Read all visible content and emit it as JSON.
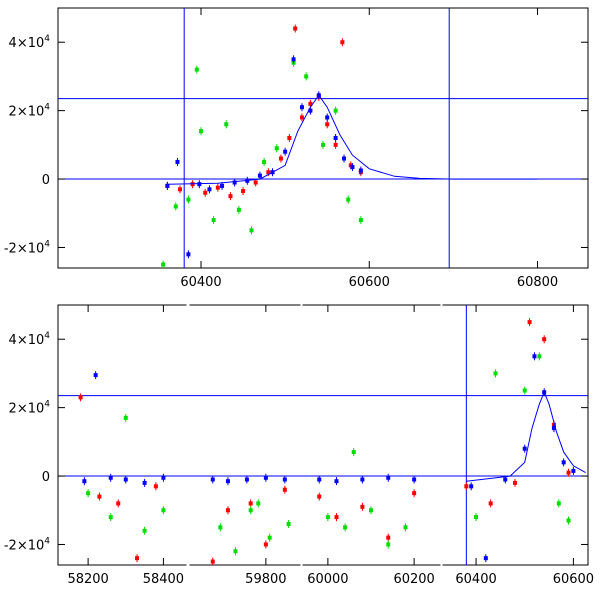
{
  "chart_data": [
    {
      "type": "scatter",
      "panel": "top",
      "xlim": [
        60230,
        60860
      ],
      "ylim": [
        -26000,
        50000
      ],
      "xticks": [
        60400,
        60600,
        60800
      ],
      "xtick_labels": [
        "60400",
        "60600",
        "60800"
      ],
      "yticks": [
        -20000,
        0,
        20000,
        40000
      ],
      "ytick_labels": [
        {
          "base": "-2×10",
          "exp": "4"
        },
        {
          "base": "0",
          "exp": ""
        },
        {
          "base": "2×10",
          "exp": "4"
        },
        {
          "base": "4×10",
          "exp": "4"
        }
      ],
      "reference_lines": {
        "vertical_x": [
          60380,
          60695
        ],
        "horizontal_y": [
          0,
          23500
        ]
      },
      "series": [
        {
          "color": "#ff0000",
          "x": [
            60360,
            60375,
            60390,
            60405,
            60420,
            60435,
            60450,
            60465,
            60480,
            60495,
            60505,
            60512,
            60520,
            60530,
            60540,
            60550,
            60560,
            60568,
            60578,
            60590
          ],
          "y": [
            -2000,
            -3000,
            -1500,
            -4000,
            -2500,
            -5000,
            -3500,
            -1000,
            2000,
            6000,
            12000,
            44000,
            18000,
            22000,
            24000,
            16000,
            10000,
            40000,
            4000,
            2000
          ]
        },
        {
          "color": "#00dd00",
          "x": [
            60355,
            60370,
            60385,
            60395,
            60400,
            60415,
            60430,
            60445,
            60460,
            60475,
            60490,
            60510,
            60525,
            60545,
            60560,
            60575,
            60590
          ],
          "y": [
            -25000,
            -8000,
            -6000,
            32000,
            14000,
            -12000,
            16000,
            -9000,
            -15000,
            5000,
            9000,
            34000,
            30000,
            10000,
            20000,
            -6000,
            -12000
          ]
        },
        {
          "color": "#0000ff",
          "x": [
            60360,
            60372,
            60385,
            60398,
            60410,
            60425,
            60440,
            60455,
            60470,
            60485,
            60500,
            60510,
            60520,
            60530,
            60540,
            60550,
            60560,
            60570,
            60580,
            60590
          ],
          "y": [
            -2000,
            5000,
            -22000,
            -1500,
            -3000,
            -2000,
            -1000,
            -500,
            1000,
            2000,
            8000,
            35000,
            21000,
            20000,
            24500,
            18000,
            12000,
            6000,
            3500,
            2500
          ]
        }
      ],
      "model_curve": {
        "color": "#0000ff",
        "x": [
          60360,
          60420,
          60470,
          60500,
          60515,
          60530,
          60540,
          60550,
          60565,
          60580,
          60600,
          60630,
          60660,
          60700,
          60800
        ],
        "y": [
          -1500,
          -1200,
          0,
          4000,
          14000,
          21000,
          24500,
          21000,
          13000,
          7000,
          3000,
          800,
          200,
          0,
          0
        ]
      }
    },
    {
      "type": "scatter",
      "panel": "bottom",
      "xlim": [
        58120,
        60630
      ],
      "ylim": [
        -26000,
        50000
      ],
      "xticks": [
        58200,
        58400,
        59800,
        60000,
        60200,
        60400,
        60600
      ],
      "xtick_labels": [
        "58200",
        "58400",
        "59800",
        "60000",
        "60200",
        "60400",
        "60600"
      ],
      "yticks": [
        -20000,
        0,
        20000,
        40000
      ],
      "ytick_labels": [
        {
          "base": "-2×10",
          "exp": "4"
        },
        {
          "base": "0",
          "exp": ""
        },
        {
          "base": "2×10",
          "exp": "4"
        },
        {
          "base": "4×10",
          "exp": "4"
        }
      ],
      "reference_lines": {
        "vertical_x": [
          60380
        ],
        "horizontal_y": [
          0,
          23500
        ]
      },
      "seasons": [
        [
          58180,
          58440
        ],
        [
          59640,
          59870
        ],
        [
          59960,
          60240
        ],
        [
          60360,
          60620
        ]
      ],
      "series": [
        {
          "color": "#ff0000",
          "x": [
            58180,
            58230,
            58280,
            58330,
            58380,
            59660,
            59700,
            59760,
            59800,
            59850,
            59980,
            60020,
            60080,
            60140,
            60200,
            60380,
            60430,
            60480,
            60510,
            60540,
            60560,
            60590
          ],
          "y": [
            23000,
            -6000,
            -8000,
            -24000,
            -3000,
            -25000,
            -10000,
            -8000,
            -20000,
            -4000,
            -6000,
            -12000,
            -9000,
            -18000,
            -5000,
            -3000,
            -8000,
            -2000,
            45000,
            40000,
            15000,
            1000
          ]
        },
        {
          "color": "#00dd00",
          "x": [
            58200,
            58260,
            58300,
            58350,
            58400,
            59680,
            59720,
            59760,
            59780,
            59810,
            59860,
            60000,
            60040,
            60060,
            60100,
            60140,
            60180,
            60400,
            60440,
            60500,
            60530,
            60570,
            60590
          ],
          "y": [
            -5000,
            -12000,
            17000,
            -16000,
            -10000,
            -15000,
            -22000,
            -10000,
            -8000,
            -18000,
            -14000,
            -12000,
            -15000,
            7000,
            -10000,
            -20000,
            -15000,
            -12000,
            30000,
            25000,
            35000,
            -8000,
            -13000
          ]
        },
        {
          "color": "#0000ff",
          "x": [
            58190,
            58220,
            58260,
            58300,
            58350,
            58400,
            59660,
            59700,
            59750,
            59800,
            59850,
            59980,
            60020,
            60080,
            60140,
            60200,
            60390,
            60420,
            60460,
            60500,
            60520,
            60540,
            60560,
            60580,
            60600
          ],
          "y": [
            -1500,
            29500,
            -500,
            -1000,
            -2000,
            -500,
            -1000,
            -1500,
            -1000,
            -500,
            -1000,
            -1000,
            -1500,
            -1000,
            -500,
            -1000,
            -3000,
            -24000,
            -1000,
            8000,
            35000,
            24500,
            14000,
            4000,
            1500
          ]
        }
      ],
      "model_curve": {
        "color": "#0000ff",
        "x": [
          60380,
          60470,
          60500,
          60515,
          60530,
          60540,
          60550,
          60565,
          60580,
          60600,
          60625
        ],
        "y": [
          -1500,
          0,
          4000,
          14000,
          21000,
          24500,
          21000,
          13000,
          7000,
          3000,
          1000
        ]
      }
    }
  ]
}
